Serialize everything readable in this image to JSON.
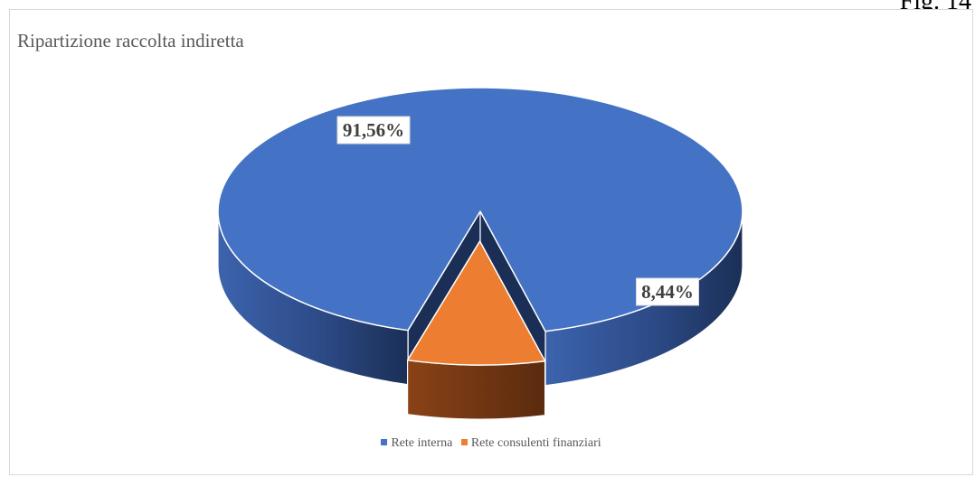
{
  "figure_tag": "Fig. 14",
  "chart_data": {
    "type": "pie",
    "title": "Ripartizione raccolta indiretta",
    "categories": [
      "Rete interna",
      "Rete consulenti finanziari"
    ],
    "values": [
      91.56,
      8.44
    ],
    "data_labels": [
      "91,56%",
      "8,44%"
    ],
    "colors": [
      "#4472c4",
      "#ed7d31"
    ],
    "legend_position": "bottom",
    "exploded_slice": "Rete consulenti finanziari",
    "style": "3d"
  }
}
